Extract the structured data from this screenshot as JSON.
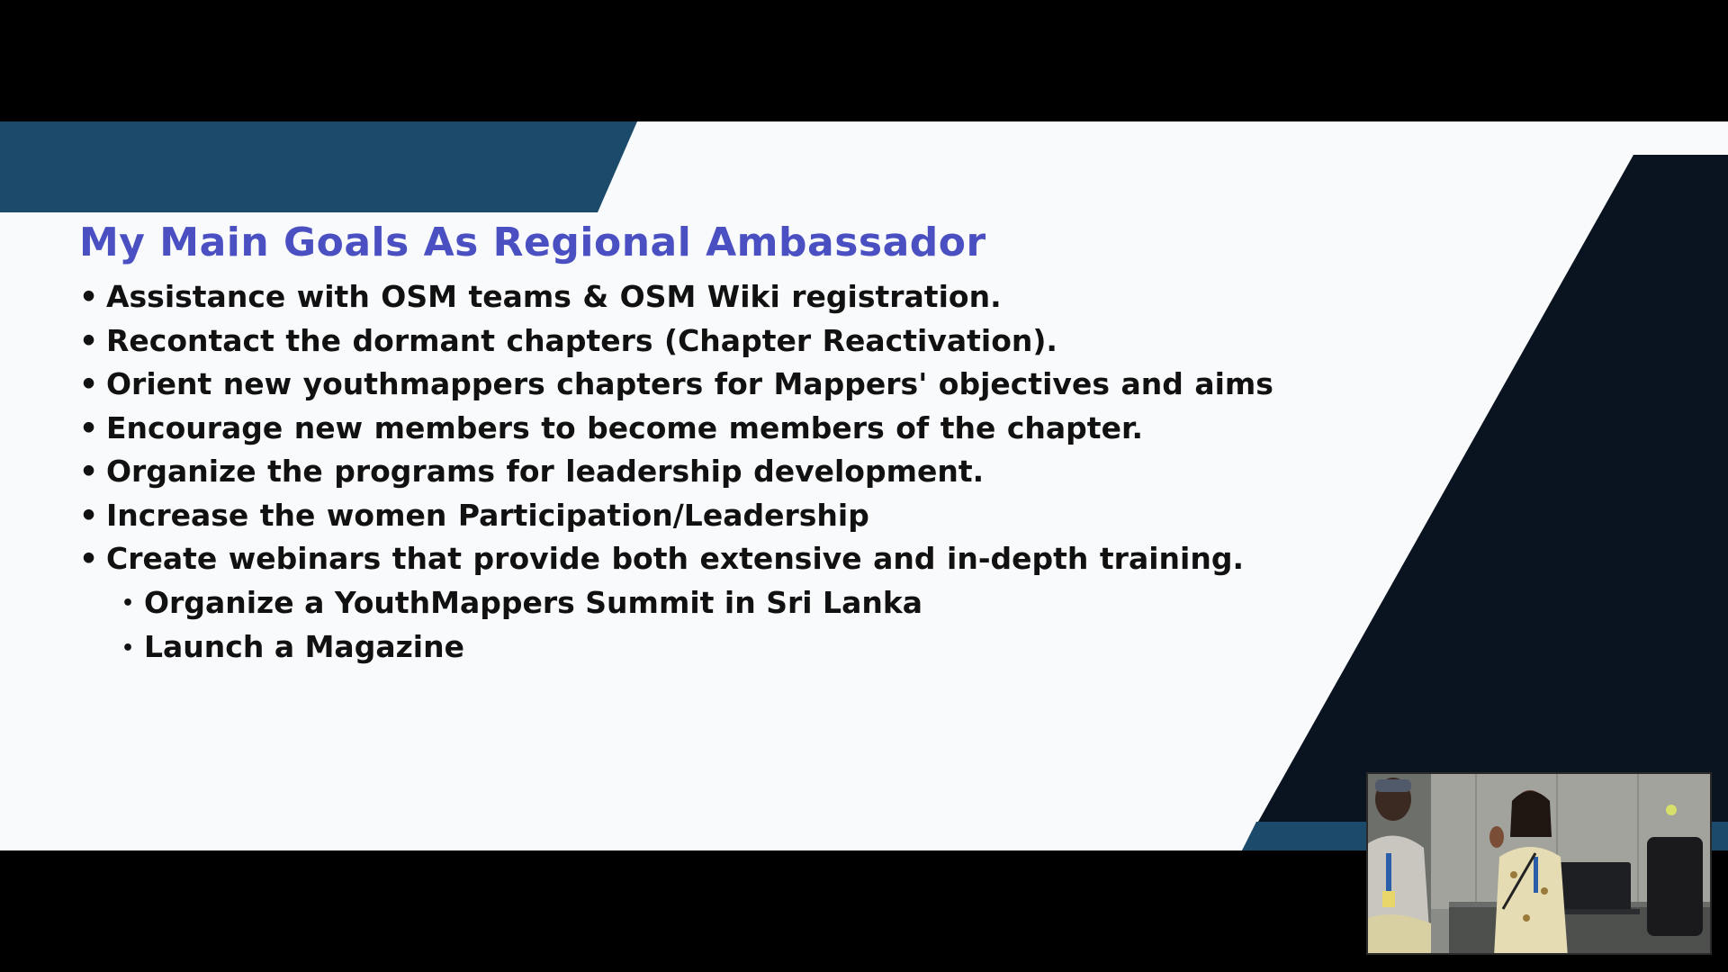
{
  "slide": {
    "title": "My Main Goals As Regional Ambassador",
    "bullets": [
      "Assistance with OSM teams & OSM Wiki registration.",
      "Recontact the dormant chapters (Chapter Reactivation).",
      "Orient new youthmappers chapters for Mappers' objectives and aims",
      "Encourage new members to become members of the chapter.",
      "Organize the programs for leadership development.",
      "Increase the women Participation/Leadership",
      "Create webinars that provide both extensive and in-depth training."
    ],
    "sub_bullets": [
      "Organize a YouthMappers Summit in Sri Lanka",
      "Launch a Magazine"
    ],
    "colors": {
      "title": "#4a4fc2",
      "band_blue": "#1b4a6b",
      "dark_panel": "#0a1320",
      "slide_bg": "#f9fafb"
    }
  },
  "video_pip": {
    "icon": "speaker-video-feed"
  }
}
